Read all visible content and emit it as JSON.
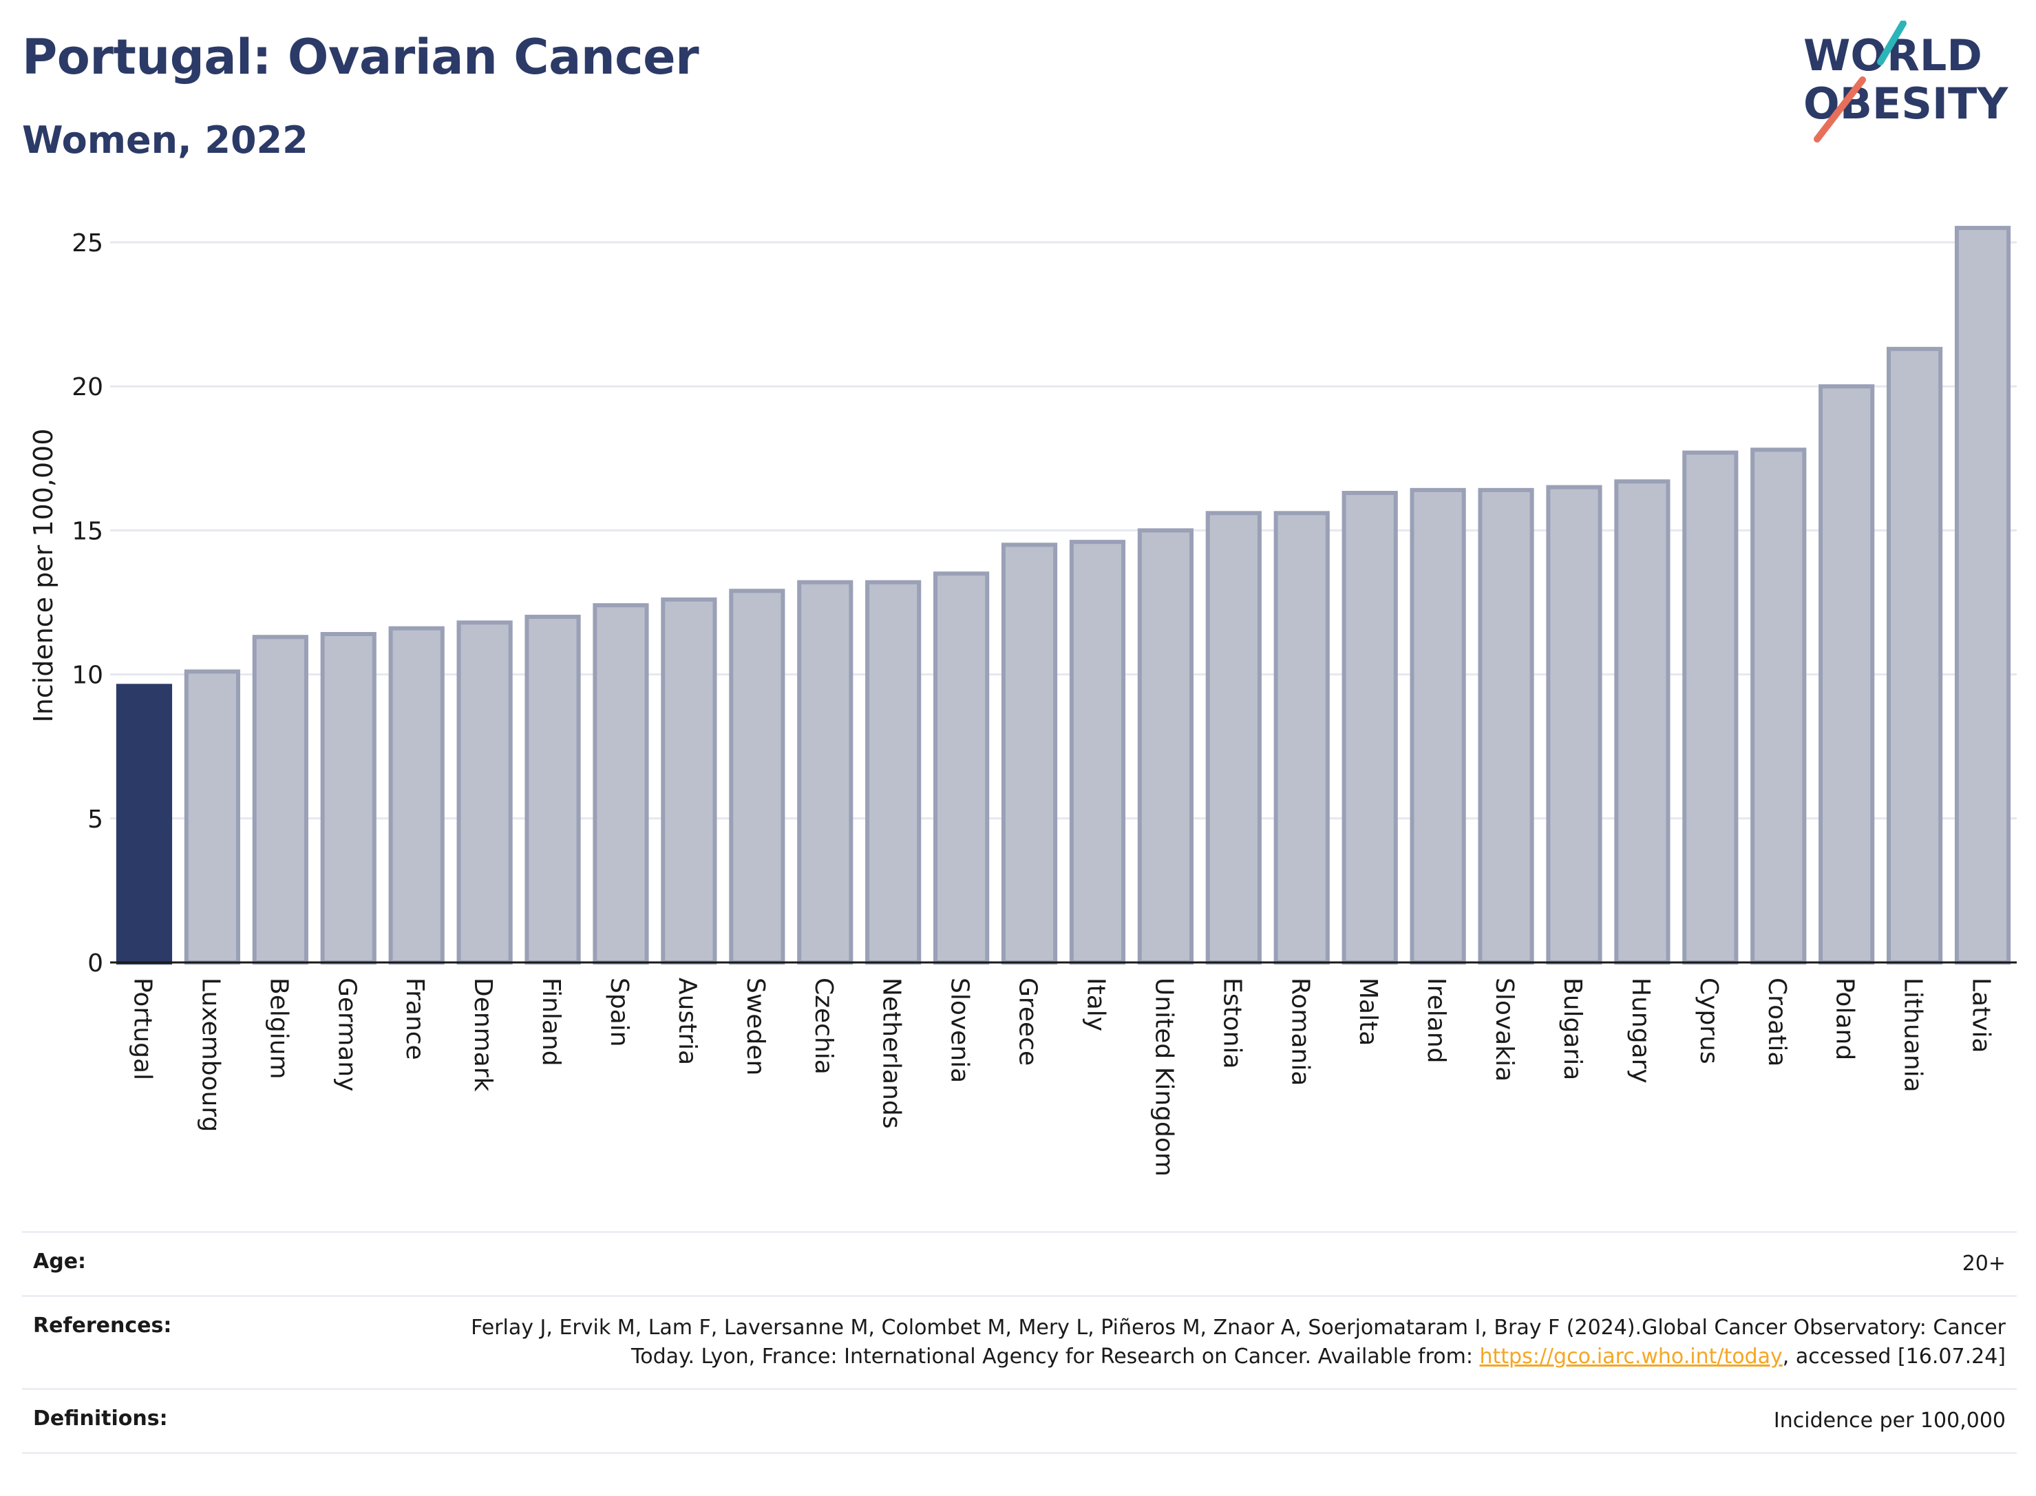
{
  "header": {
    "title": "Portugal: Ovarian Cancer",
    "subtitle": "Women, 2022"
  },
  "logo": {
    "line1": "WORLD",
    "line2": "OBESITY",
    "colors": {
      "text": "#2b3a67",
      "teal": "#2bb5b8",
      "coral": "#e8705a"
    }
  },
  "colors": {
    "highlight": "#2b3a67",
    "bar_fill": "#bcc0cd",
    "bar_stroke": "#9aa0b6",
    "grid": "#e6e8ef",
    "axis": "#1a1a1a"
  },
  "chart_data": {
    "type": "bar",
    "ylabel": "Incidence per 100,000",
    "ylim": [
      0,
      26.5
    ],
    "yticks": [
      0,
      5,
      10,
      15,
      20,
      25
    ],
    "grid": true,
    "highlight": "Portugal",
    "categories": [
      "Portugal",
      "Luxembourg",
      "Belgium",
      "Germany",
      "France",
      "Denmark",
      "Finland",
      "Spain",
      "Austria",
      "Sweden",
      "Czechia",
      "Netherlands",
      "Slovenia",
      "Greece",
      "Italy",
      "United Kingdom",
      "Estonia",
      "Romania",
      "Malta",
      "Ireland",
      "Slovakia",
      "Bulgaria",
      "Hungary",
      "Cyprus",
      "Croatia",
      "Poland",
      "Lithuania",
      "Latvia"
    ],
    "values": [
      9.6,
      10.1,
      11.3,
      11.4,
      11.6,
      11.8,
      12.0,
      12.4,
      12.6,
      12.9,
      13.2,
      13.2,
      13.5,
      14.5,
      14.6,
      15.0,
      15.6,
      15.6,
      16.3,
      16.4,
      16.4,
      16.5,
      16.7,
      17.7,
      17.8,
      20.0,
      21.3,
      25.5
    ]
  },
  "info": {
    "age_label": "Age:",
    "age_value": "20+",
    "references_label": "References:",
    "references_text": "Ferlay J, Ervik M, Lam F, Laversanne M, Colombet M, Mery L, Piñeros M, Znaor A, Soerjomataram I, Bray F (2024).Global Cancer Observatory: Cancer Today. Lyon, France: International Agency for Research on Cancer. Available from: ",
    "references_link": "https://gco.iarc.who.int/today",
    "references_tail": ", accessed [16.07.24]",
    "definitions_label": "Definitions:",
    "definitions_value": "Incidence per 100,000"
  }
}
